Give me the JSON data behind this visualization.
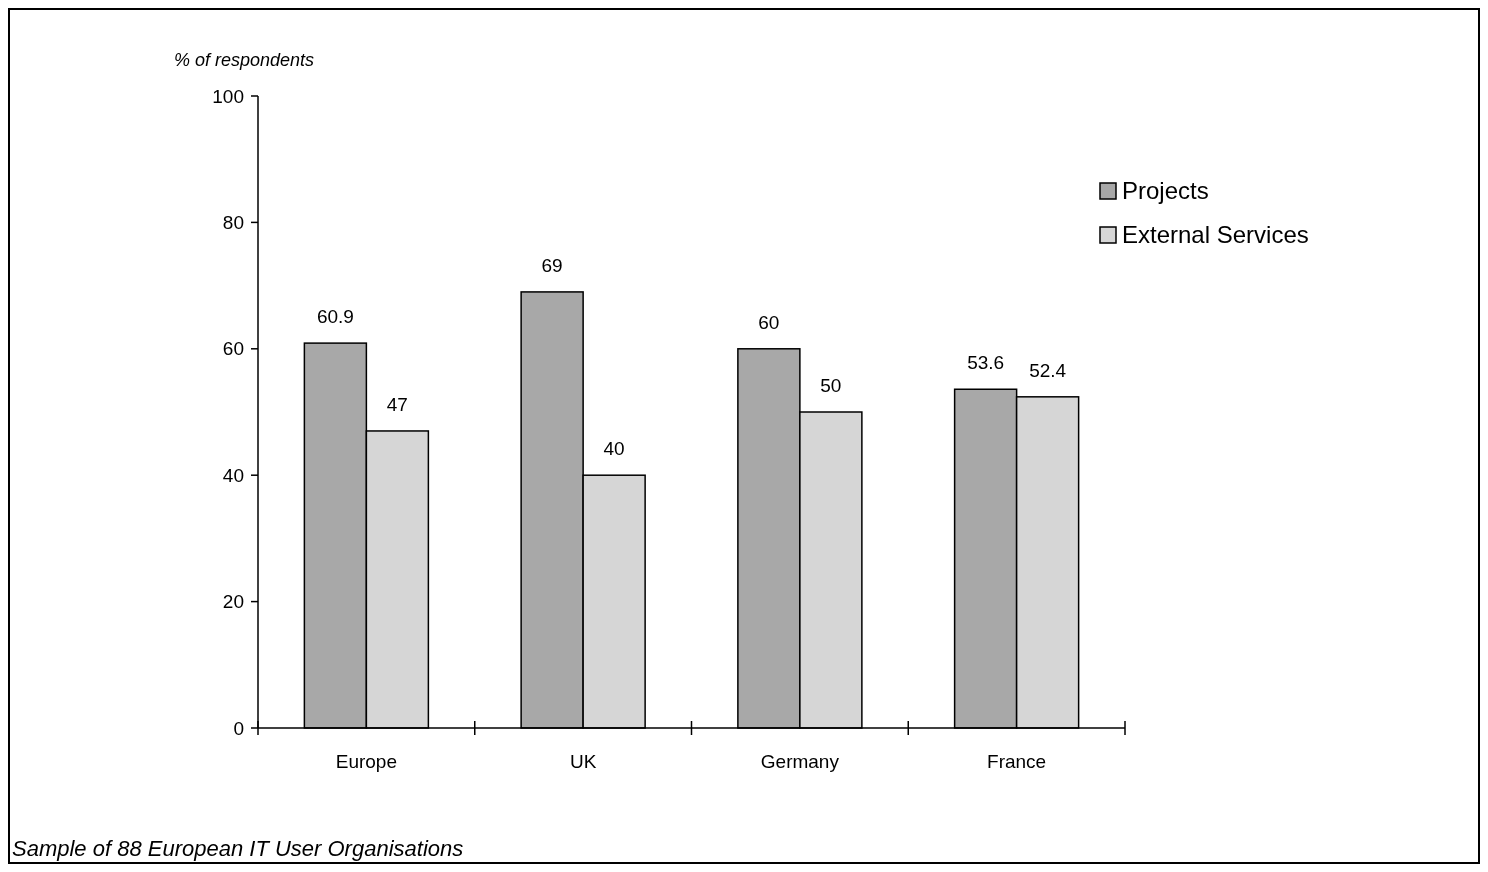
{
  "chart_data": {
    "type": "bar",
    "ylabel": "% of respondents",
    "categories": [
      "Europe",
      "UK",
      "Germany",
      "France"
    ],
    "series": [
      {
        "name": "Projects",
        "color": "#a8a8a8",
        "values": [
          60.9,
          69,
          60,
          53.6
        ]
      },
      {
        "name": "External Services",
        "color": "#d6d6d6",
        "values": [
          47,
          40,
          50,
          52.4
        ]
      }
    ],
    "ylim": [
      0,
      100
    ],
    "yticks": [
      0,
      20,
      40,
      60,
      80,
      100
    ],
    "data_labels": true,
    "legend": "top right",
    "annotations": [
      "Sample of 88 European IT User Organisations"
    ]
  }
}
